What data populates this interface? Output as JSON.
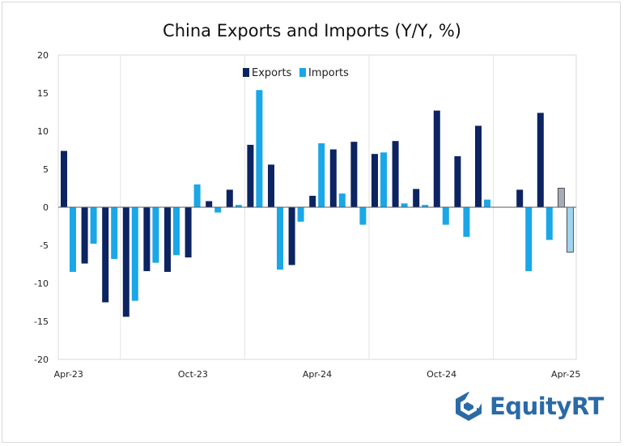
{
  "chart_data": {
    "type": "bar",
    "title": "China Exports and Imports (Y/Y, %)",
    "xlabel": "",
    "ylabel": "",
    "ylim": [
      -20,
      20
    ],
    "yticks": [
      20,
      15,
      10,
      5,
      0,
      -5,
      -10,
      -15,
      -20
    ],
    "x_tick_labels": [
      {
        "index": 0,
        "label": "Apr-23"
      },
      {
        "index": 6,
        "label": "Oct-23"
      },
      {
        "index": 12,
        "label": "Apr-24"
      },
      {
        "index": 18,
        "label": "Oct-24"
      },
      {
        "index": 24,
        "label": "Apr-25"
      }
    ],
    "categories": [
      "Apr-23",
      "May-23",
      "Jun-23",
      "Jul-23",
      "Aug-23",
      "Sep-23",
      "Oct-23",
      "Nov-23",
      "Dec-23",
      "Jan-24",
      "Feb-24",
      "Mar-24",
      "Apr-24",
      "May-24",
      "Jun-24",
      "Jul-24",
      "Aug-24",
      "Sep-24",
      "Oct-24",
      "Nov-24",
      "Dec-24",
      "Jan-25",
      "Feb-25",
      "Mar-25",
      "Apr-25"
    ],
    "legend_position": "top-center",
    "highlight_last": true,
    "series": [
      {
        "name": "Exports",
        "color": "#0c2461",
        "highlight_color": "#a5acb8",
        "values": [
          7.4,
          -7.4,
          -12.5,
          -14.4,
          -8.4,
          -8.5,
          -6.6,
          0.8,
          2.3,
          8.2,
          5.6,
          -7.6,
          1.5,
          7.6,
          8.6,
          7.0,
          8.7,
          2.4,
          12.7,
          6.7,
          10.7,
          null,
          2.3,
          12.4,
          2.5
        ]
      },
      {
        "name": "Imports",
        "color": "#1aa7e8",
        "highlight_color": "#9fd3ee",
        "values": [
          -8.5,
          -4.8,
          -6.8,
          -12.3,
          -7.3,
          -6.3,
          3.0,
          -0.7,
          0.3,
          15.4,
          -8.2,
          -1.9,
          8.4,
          1.8,
          -2.3,
          7.2,
          0.5,
          0.3,
          -2.3,
          -3.9,
          1.0,
          null,
          -8.4,
          -4.3,
          -5.9
        ]
      }
    ]
  },
  "brand": {
    "name": "EquityRT"
  }
}
